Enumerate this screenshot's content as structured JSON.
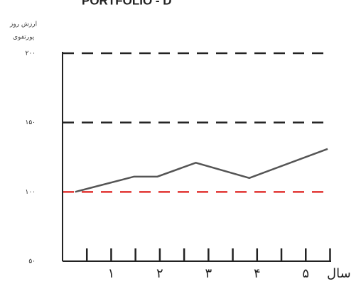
{
  "chart_data": {
    "type": "line",
    "title": "PORTFOLIO - D",
    "ylabel": [
      "ارزش روز",
      "پورتفوی"
    ],
    "xlabel": "سال",
    "xlim": [
      0,
      5.8
    ],
    "ylim": [
      50,
      200
    ],
    "yticks": [
      {
        "value": 50,
        "label": "۵۰"
      },
      {
        "value": 100,
        "label": "۱۰۰"
      },
      {
        "value": 150,
        "label": "۱۵۰"
      },
      {
        "value": 200,
        "label": "۲۰۰"
      }
    ],
    "xticks": [
      {
        "value": 1,
        "label": "۱"
      },
      {
        "value": 2,
        "label": "۲"
      },
      {
        "value": 3,
        "label": "۳"
      },
      {
        "value": 4,
        "label": "۴"
      },
      {
        "value": 5,
        "label": "۵"
      }
    ],
    "x_minor_ticks": [
      0.5,
      1,
      1.5,
      2,
      2.5,
      3,
      3.5,
      4,
      4.5,
      5,
      5.5
    ],
    "grid": true,
    "grid_color": "#222",
    "reference_line": {
      "value": 100,
      "color": "#e0312f"
    },
    "series": [
      {
        "color": "#555555",
        "x": [
          0.26,
          1.47,
          1.95,
          2.74,
          3.84,
          5.45
        ],
        "values": [
          100,
          111,
          111,
          121,
          110,
          131
        ]
      }
    ]
  }
}
